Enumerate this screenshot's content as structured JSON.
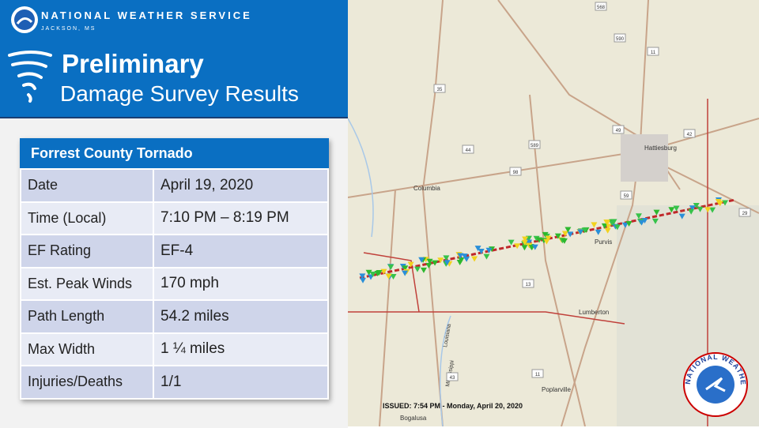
{
  "header": {
    "org": "NATIONAL WEATHER SERVICE",
    "office": "JACKSON, MS",
    "title_line1": "Preliminary",
    "title_line2": "Damage Survey Results"
  },
  "table": {
    "title": "Forrest County Tornado",
    "rows": [
      [
        "Date",
        "April 19, 2020"
      ],
      [
        "Time (Local)",
        "7:10 PM – 8:19 PM"
      ],
      [
        "EF Rating",
        "EF-4"
      ],
      [
        "Est. Peak Winds",
        "170 mph"
      ],
      [
        "Path Length",
        "54.2 miles"
      ],
      [
        "Max Width",
        "1 ¼ miles"
      ],
      [
        "Injuries/Deaths",
        "1/1"
      ]
    ]
  },
  "map": {
    "places": [
      "Hattiesburg",
      "Columbia",
      "Purvis",
      "Lumberton",
      "Poplarville",
      "Bogalusa",
      "Louisiana",
      "Mississippi"
    ],
    "routes": [
      "568",
      "590",
      "11",
      "49",
      "35",
      "44",
      "589",
      "98",
      "59",
      "42",
      "29",
      "13",
      "43",
      "11"
    ],
    "issued": "ISSUED: 7:54 PM - Monday, April 20, 2020",
    "seal_text": "NATIONAL WEATHER SERVICE"
  }
}
